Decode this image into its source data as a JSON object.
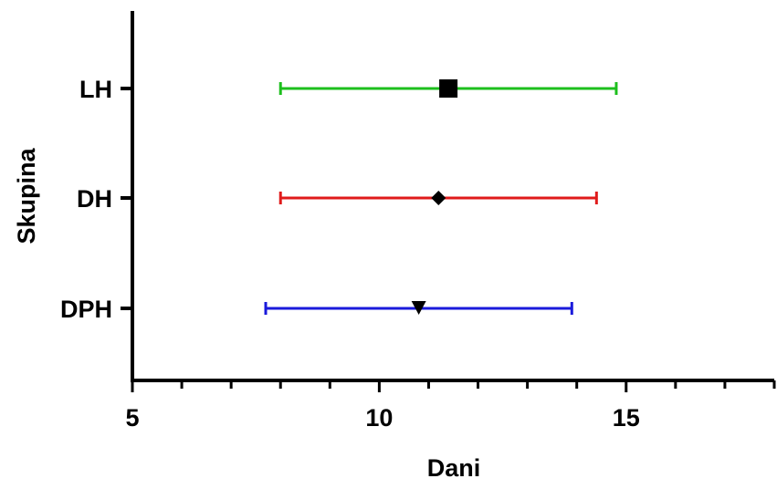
{
  "chart_data": {
    "type": "scatter",
    "title": "",
    "xlabel": "Dani",
    "ylabel": "Skupina",
    "xlim": [
      5,
      18
    ],
    "x_ticks": [
      5,
      10,
      15
    ],
    "x_minor_step": 1,
    "grid": false,
    "legend": "none",
    "series": [
      {
        "category": "LH",
        "mean": 11.4,
        "low": 8.0,
        "high": 14.8,
        "color": "#1dbf1d",
        "marker": "square"
      },
      {
        "category": "DH",
        "mean": 11.2,
        "low": 8.0,
        "high": 14.4,
        "color": "#e01b1b",
        "marker": "diamond"
      },
      {
        "category": "DPH",
        "mean": 10.8,
        "low": 7.7,
        "high": 13.9,
        "color": "#1a1adb",
        "marker": "triangle-down"
      }
    ]
  }
}
